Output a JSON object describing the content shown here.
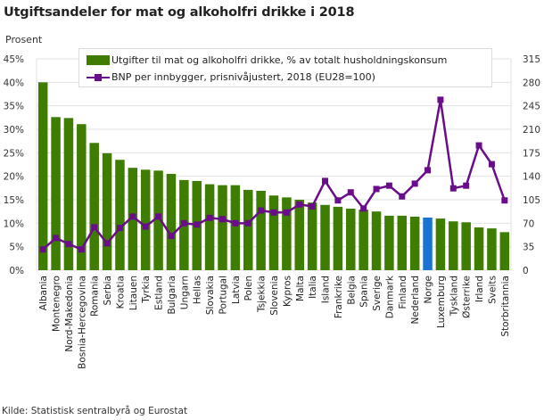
{
  "header": {
    "title": "Utgiftsandeler for mat og alkoholfri drikke i 2018",
    "unit_label": "Prosent"
  },
  "footer": {
    "source": "Kilde: Statistisk sentralbyrå og Eurostat"
  },
  "legend": {
    "bar_label": "Utgifter til mat og alkoholfri drikke, % av totalt husholdningskonsum",
    "line_label": "BNP per innbygger, prisnivåjustert, 2018 (EU28=100)"
  },
  "colors": {
    "bar": "#3e7d00",
    "bar_highlight": "#1a73d1",
    "line": "#6a0d8a",
    "grid": "#e2e2e2"
  },
  "chart_data": {
    "type": "bar+line",
    "title": "Utgiftsandeler for mat og alkoholfri drikke i 2018",
    "ylabel": "Prosent",
    "y2label": "",
    "xlabel": "",
    "ylim": [
      0,
      45
    ],
    "y2lim": [
      0,
      315
    ],
    "yticks": [
      "0%",
      "5%",
      "10%",
      "15%",
      "20%",
      "25%",
      "30%",
      "35%",
      "40%",
      "45%"
    ],
    "y2ticks": [
      "0",
      "35",
      "70",
      "105",
      "140",
      "175",
      "210",
      "245",
      "280",
      "315"
    ],
    "grid": true,
    "legend_position": "top-inside",
    "highlight_category": "Norge",
    "categories": [
      "Albania",
      "Montenegro",
      "Nord-Makedonia",
      "Bosnia-Hercegovina",
      "Romania",
      "Serbia",
      "Kroatia",
      "Litauen",
      "Tyrkia",
      "Estland",
      "Bulgaria",
      "Ungarn",
      "Hellas",
      "Slovakia",
      "Portugal",
      "Latvia",
      "Polen",
      "Tsjekkia",
      "Slovenia",
      "Kypros",
      "Malta",
      "Italia",
      "Island",
      "Frankrike",
      "Belgia",
      "Spania",
      "Sverige",
      "Danmark",
      "Finland",
      "Nederland",
      "Norge",
      "Luxemburg",
      "Tyskland",
      "Østerrike",
      "Irland",
      "Sveits",
      "Storbritannia"
    ],
    "series": [
      {
        "name": "Utgifter til mat og alkoholfri drikke, % av totalt husholdningskonsum",
        "type": "bar",
        "axis": "left",
        "values": [
          40.0,
          32.6,
          32.4,
          31.1,
          27.1,
          24.9,
          23.5,
          21.8,
          21.4,
          21.2,
          20.5,
          19.2,
          19.0,
          18.3,
          18.1,
          18.1,
          17.1,
          16.9,
          15.9,
          15.5,
          15.0,
          14.4,
          13.9,
          13.5,
          13.1,
          12.9,
          12.5,
          11.6,
          11.6,
          11.4,
          11.2,
          11.0,
          10.4,
          10.2,
          9.1,
          8.9,
          8.1
        ]
      },
      {
        "name": "BNP per innbygger, prisnivåjustert, 2018 (EU28=100)",
        "type": "line",
        "axis": "right",
        "values": [
          31,
          48,
          39,
          31,
          64,
          40,
          63,
          80,
          65,
          80,
          51,
          70,
          68,
          78,
          76,
          70,
          70,
          89,
          86,
          86,
          98,
          95,
          133,
          104,
          116,
          92,
          121,
          126,
          110,
          129,
          149,
          254,
          122,
          126,
          186,
          158,
          104
        ]
      }
    ]
  }
}
